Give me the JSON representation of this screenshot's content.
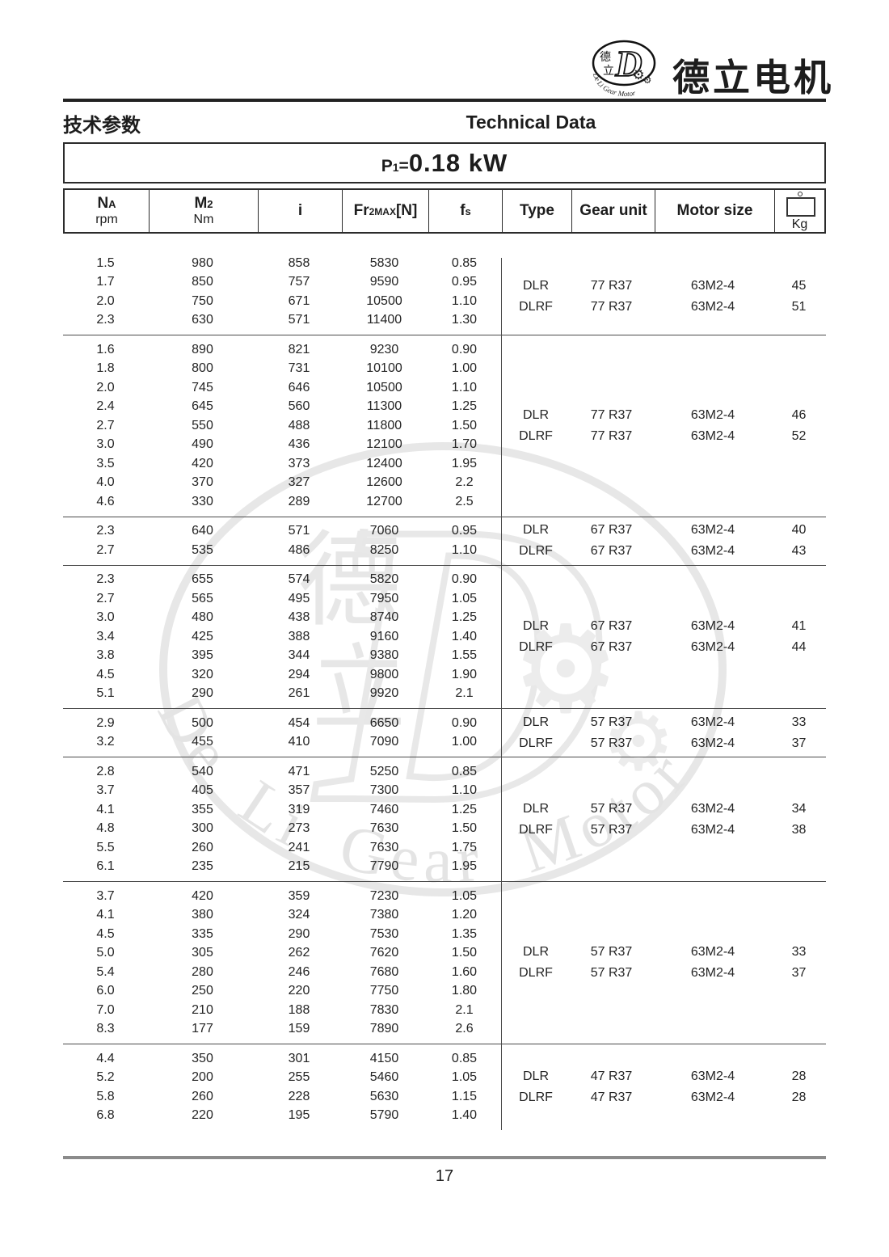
{
  "titles": {
    "cn": "技术参数",
    "en": "Technical Data"
  },
  "brand": {
    "name_cn": "德立电机"
  },
  "logo": {
    "char_top": "德",
    "char_bottom": "立",
    "letter": "D",
    "arc_text": "De Li Gear Motor",
    "gear_icon": "⚙"
  },
  "watermark": {
    "char_top": "德",
    "char_bottom": "立",
    "letter": "D",
    "arc_text": "De Li Gear Motor",
    "gear_icon": "⚙"
  },
  "power": {
    "p_main": "P",
    "p_sub": "1",
    "p_eq": "=",
    "value": "0.18 kW"
  },
  "footer": {
    "page_number": "17"
  },
  "table": {
    "headers": {
      "na_main": "N",
      "na_sub": "A",
      "na_unit": "rpm",
      "m2_main": "M",
      "m2_sub": "2",
      "m2_unit": "Nm",
      "ratio": "i",
      "fr_main": "Fr",
      "fr_sub": "2MAX",
      "fr_post": "[N]",
      "fs_main": "f",
      "fs_sub": "s",
      "type": "Type",
      "gear": "Gear unit",
      "motor": "Motor size",
      "kg": "Kg"
    },
    "groups": [
      {
        "rows": [
          [
            "1.5",
            "980",
            "858",
            "5830",
            "0.85"
          ],
          [
            "1.7",
            "850",
            "757",
            "9590",
            "0.95"
          ],
          [
            "2.0",
            "750",
            "671",
            "10500",
            "1.10"
          ],
          [
            "2.3",
            "630",
            "571",
            "11400",
            "1.30"
          ]
        ],
        "variants": [
          {
            "type": "DLR",
            "gear": "77 R37",
            "motor": "63M2-4",
            "kg": "45"
          },
          {
            "type": "DLRF",
            "gear": "77 R37",
            "motor": "63M2-4",
            "kg": "51"
          }
        ]
      },
      {
        "rows": [
          [
            "1.6",
            "890",
            "821",
            "9230",
            "0.90"
          ],
          [
            "1.8",
            "800",
            "731",
            "10100",
            "1.00"
          ],
          [
            "2.0",
            "745",
            "646",
            "10500",
            "1.10"
          ],
          [
            "2.4",
            "645",
            "560",
            "11300",
            "1.25"
          ],
          [
            "2.7",
            "550",
            "488",
            "11800",
            "1.50"
          ],
          [
            "3.0",
            "490",
            "436",
            "12100",
            "1.70"
          ],
          [
            "3.5",
            "420",
            "373",
            "12400",
            "1.95"
          ],
          [
            "4.0",
            "370",
            "327",
            "12600",
            "2.2"
          ],
          [
            "4.6",
            "330",
            "289",
            "12700",
            "2.5"
          ]
        ],
        "variants": [
          {
            "type": "DLR",
            "gear": "77 R37",
            "motor": "63M2-4",
            "kg": "46"
          },
          {
            "type": "DLRF",
            "gear": "77 R37",
            "motor": "63M2-4",
            "kg": "52"
          }
        ]
      },
      {
        "rows": [
          [
            "2.3",
            "640",
            "571",
            "7060",
            "0.95"
          ],
          [
            "2.7",
            "535",
            "486",
            "8250",
            "1.10"
          ]
        ],
        "variants": [
          {
            "type": "DLR",
            "gear": "67 R37",
            "motor": "63M2-4",
            "kg": "40"
          },
          {
            "type": "DLRF",
            "gear": "67 R37",
            "motor": "63M2-4",
            "kg": "43"
          }
        ]
      },
      {
        "rows": [
          [
            "2.3",
            "655",
            "574",
            "5820",
            "0.90"
          ],
          [
            "2.7",
            "565",
            "495",
            "7950",
            "1.05"
          ],
          [
            "3.0",
            "480",
            "438",
            "8740",
            "1.25"
          ],
          [
            "3.4",
            "425",
            "388",
            "9160",
            "1.40"
          ],
          [
            "3.8",
            "395",
            "344",
            "9380",
            "1.55"
          ],
          [
            "4.5",
            "320",
            "294",
            "9800",
            "1.90"
          ],
          [
            "5.1",
            "290",
            "261",
            "9920",
            "2.1"
          ]
        ],
        "variants": [
          {
            "type": "DLR",
            "gear": "67 R37",
            "motor": "63M2-4",
            "kg": "41"
          },
          {
            "type": "DLRF",
            "gear": "67 R37",
            "motor": "63M2-4",
            "kg": "44"
          }
        ]
      },
      {
        "rows": [
          [
            "2.9",
            "500",
            "454",
            "6650",
            "0.90"
          ],
          [
            "3.2",
            "455",
            "410",
            "7090",
            "1.00"
          ]
        ],
        "variants": [
          {
            "type": "DLR",
            "gear": "57 R37",
            "motor": "63M2-4",
            "kg": "33"
          },
          {
            "type": "DLRF",
            "gear": "57 R37",
            "motor": "63M2-4",
            "kg": "37"
          }
        ]
      },
      {
        "rows": [
          [
            "2.8",
            "540",
            "471",
            "5250",
            "0.85"
          ],
          [
            "3.7",
            "405",
            "357",
            "7300",
            "1.10"
          ],
          [
            "4.1",
            "355",
            "319",
            "7460",
            "1.25"
          ],
          [
            "4.8",
            "300",
            "273",
            "7630",
            "1.50"
          ],
          [
            "5.5",
            "260",
            "241",
            "7630",
            "1.75"
          ],
          [
            "6.1",
            "235",
            "215",
            "7790",
            "1.95"
          ]
        ],
        "variants": [
          {
            "type": "DLR",
            "gear": "57 R37",
            "motor": "63M2-4",
            "kg": "34"
          },
          {
            "type": "DLRF",
            "gear": "57 R37",
            "motor": "63M2-4",
            "kg": "38"
          }
        ]
      },
      {
        "rows": [
          [
            "3.7",
            "420",
            "359",
            "7230",
            "1.05"
          ],
          [
            "4.1",
            "380",
            "324",
            "7380",
            "1.20"
          ],
          [
            "4.5",
            "335",
            "290",
            "7530",
            "1.35"
          ],
          [
            "5.0",
            "305",
            "262",
            "7620",
            "1.50"
          ],
          [
            "5.4",
            "280",
            "246",
            "7680",
            "1.60"
          ],
          [
            "6.0",
            "250",
            "220",
            "7750",
            "1.80"
          ],
          [
            "7.0",
            "210",
            "188",
            "7830",
            "2.1"
          ],
          [
            "8.3",
            "177",
            "159",
            "7890",
            "2.6"
          ]
        ],
        "variants": [
          {
            "type": "DLR",
            "gear": "57 R37",
            "motor": "63M2-4",
            "kg": "33"
          },
          {
            "type": "DLRF",
            "gear": "57 R37",
            "motor": "63M2-4",
            "kg": "37"
          }
        ]
      },
      {
        "rows": [
          [
            "4.4",
            "350",
            "301",
            "4150",
            "0.85"
          ],
          [
            "5.2",
            "200",
            "255",
            "5460",
            "1.05"
          ],
          [
            "5.8",
            "260",
            "228",
            "5630",
            "1.15"
          ],
          [
            "6.8",
            "220",
            "195",
            "5790",
            "1.40"
          ]
        ],
        "variants": [
          {
            "type": "DLR",
            "gear": "47 R37",
            "motor": "63M2-4",
            "kg": "28"
          },
          {
            "type": "DLRF",
            "gear": "47 R37",
            "motor": "63M2-4",
            "kg": "28"
          }
        ]
      }
    ]
  }
}
